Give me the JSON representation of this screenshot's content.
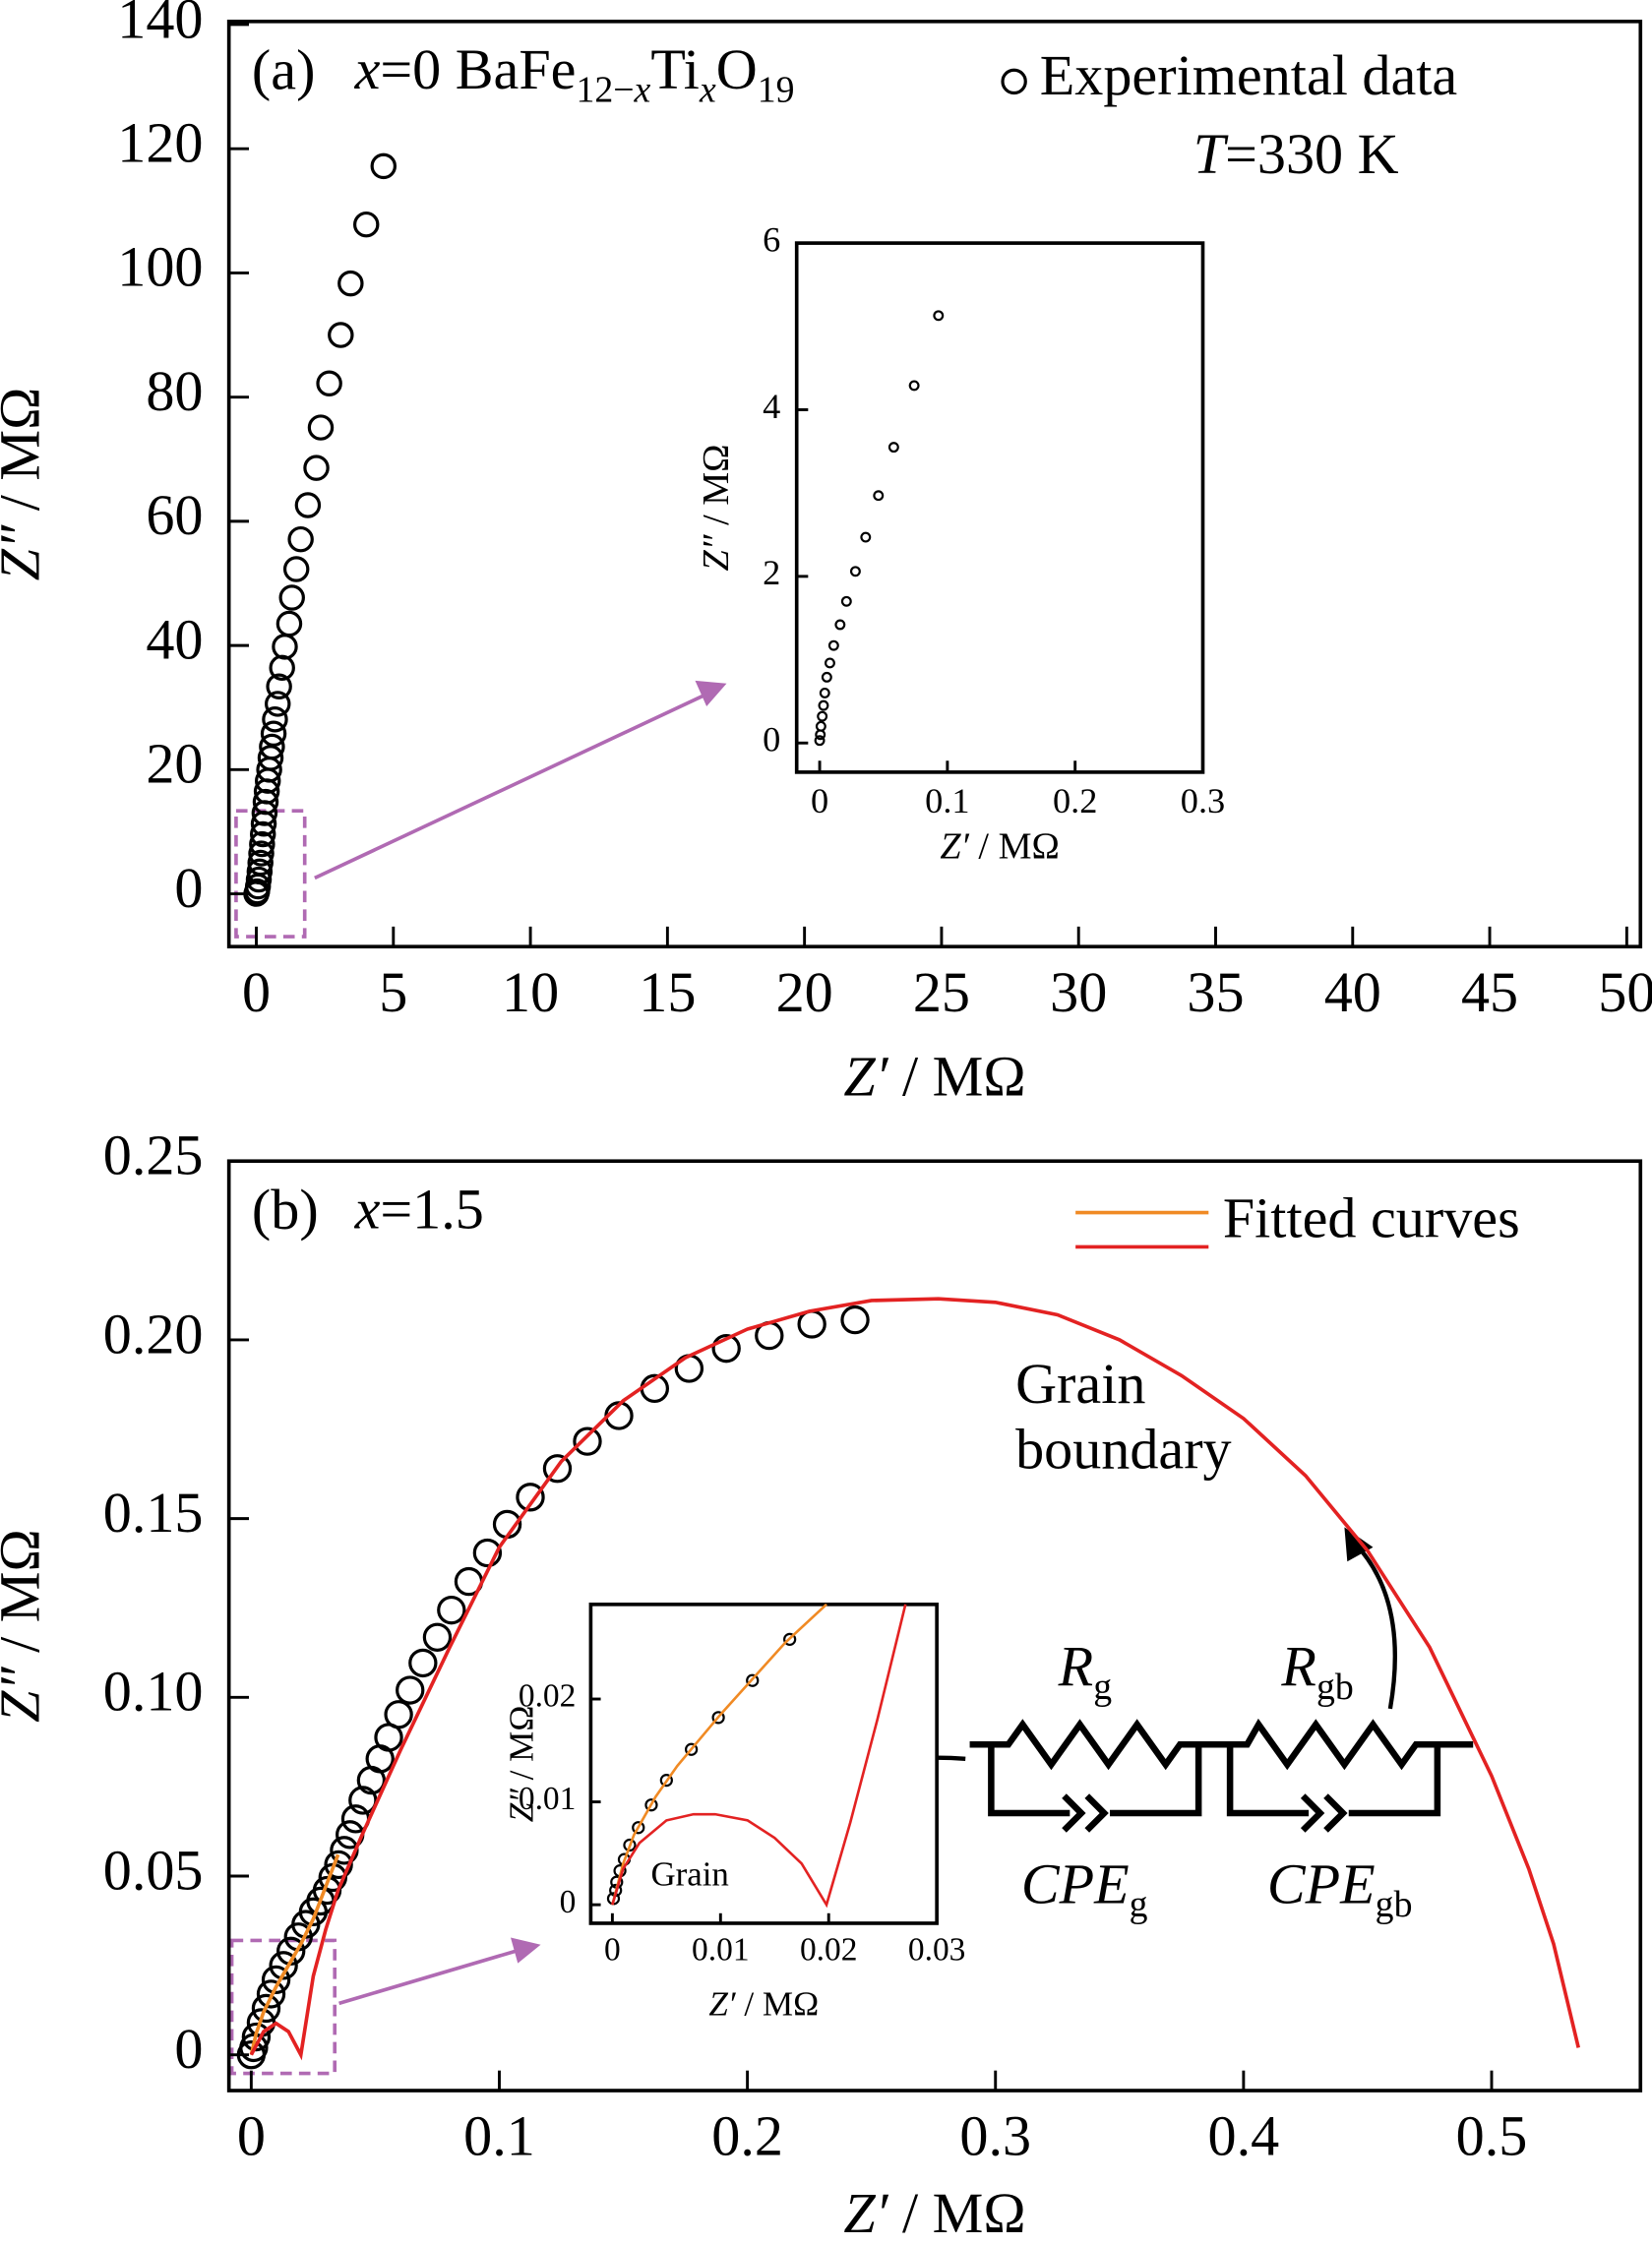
{
  "chart_data": [
    {
      "type": "scatter",
      "panel": "(a)",
      "title_parts": [
        {
          "t": "x",
          "i": true
        },
        {
          "t": "=0 BaFe"
        },
        {
          "t": "12−",
          "sub": true
        },
        {
          "t": "x",
          "sub": true,
          "i": true
        },
        {
          "t": "Ti"
        },
        {
          "t": "x",
          "sub": true,
          "i": true
        },
        {
          "t": "O"
        },
        {
          "t": "19",
          "sub": true
        }
      ],
      "xlabel": [
        {
          "t": "Z′",
          "i": true
        },
        {
          "t": " / MΩ"
        }
      ],
      "ylabel": [
        {
          "t": "Z″",
          "i": true
        },
        {
          "t": " / MΩ"
        }
      ],
      "xlim": [
        -1,
        50.5
      ],
      "ylim": [
        -8.5,
        140.5
      ],
      "xticks": [
        0,
        5,
        10,
        15,
        20,
        25,
        30,
        35,
        40,
        45,
        50
      ],
      "yticks": [
        0,
        20,
        40,
        60,
        80,
        100,
        120,
        140
      ],
      "legend": "upper right",
      "annotations": [
        [
          {
            "t": "T",
            "i": true
          },
          {
            "t": "=330 K"
          }
        ]
      ],
      "series": [
        {
          "name": "Experimental data",
          "kind": "points",
          "color": "#000000",
          "x": [
            4.64,
            4.01,
            3.44,
            3.08,
            2.66,
            2.35,
            2.19,
            1.88,
            1.62,
            1.46,
            1.3,
            1.2,
            1.04,
            0.94,
            0.83,
            0.78,
            0.68,
            0.63,
            0.57,
            0.52,
            0.47,
            0.42,
            0.38,
            0.34,
            0.3,
            0.27,
            0.24,
            0.21,
            0.18,
            0.15,
            0.12,
            0.09,
            0.06,
            0.03,
            0
          ],
          "values": [
            117.2,
            107.8,
            98.3,
            90.0,
            82.2,
            75.1,
            68.6,
            62.6,
            57.1,
            52.3,
            47.7,
            43.5,
            39.8,
            36.4,
            33.4,
            30.6,
            28.1,
            25.8,
            23.7,
            21.9,
            20.0,
            18.2,
            16.5,
            14.8,
            13.0,
            11.3,
            9.6,
            8.0,
            6.5,
            5.0,
            3.6,
            2.3,
            1.2,
            0.4,
            0
          ]
        }
      ]
    },
    {
      "type": "scatter",
      "xlabel": [
        {
          "t": "Z′",
          "i": true
        },
        {
          "t": " / MΩ"
        }
      ],
      "ylabel": [
        {
          "t": "Z″",
          "i": true
        },
        {
          "t": " / MΩ"
        }
      ],
      "xlim": [
        -0.018,
        0.3
      ],
      "ylim": [
        -0.35,
        6
      ],
      "xticks": [
        0,
        0.1,
        0.2,
        0.3
      ],
      "yticks": [
        0,
        2,
        4,
        6
      ],
      "series": [
        {
          "kind": "points",
          "color": "#000000",
          "x": [
            0.093,
            0.074,
            0.058,
            0.046,
            0.036,
            0.028,
            0.021,
            0.016,
            0.011,
            0.008,
            0.0056,
            0.004,
            0.003,
            0.002,
            0.001,
            0.0005,
            0
          ],
          "values": [
            5.13,
            4.29,
            3.55,
            2.97,
            2.47,
            2.06,
            1.7,
            1.42,
            1.17,
            0.96,
            0.79,
            0.6,
            0.45,
            0.32,
            0.2,
            0.1,
            0.03
          ]
        }
      ]
    },
    {
      "type": "scatter",
      "panel": "(b)",
      "title_parts": [
        {
          "t": "x",
          "i": true
        },
        {
          "t": "=1.5"
        }
      ],
      "xlabel": [
        {
          "t": "Z′",
          "i": true
        },
        {
          "t": " / MΩ"
        }
      ],
      "ylabel": [
        {
          "t": "Z″",
          "i": true
        },
        {
          "t": " / MΩ"
        }
      ],
      "xlim": [
        -0.009,
        0.56
      ],
      "ylim": [
        -0.01,
        0.25
      ],
      "xticks": [
        0,
        0.1,
        0.2,
        0.3,
        0.4,
        0.5
      ],
      "yticks": [
        0,
        0.05,
        {
          "value": 0.1,
          "label": "0.10"
        },
        0.15,
        {
          "value": 0.2,
          "label": "0.20"
        },
        0.25
      ],
      "legend": "upper right",
      "legend_label": "Fitted curves",
      "annotations": [
        [
          {
            "t": "Grain"
          }
        ],
        [
          {
            "t": "boundary"
          }
        ],
        [
          {
            "t": "R",
            "i": true
          },
          {
            "t": "g",
            "sub": true
          }
        ],
        [
          {
            "t": "R",
            "i": true
          },
          {
            "t": "gb",
            "sub": true
          }
        ],
        [
          {
            "t": "CPE",
            "i": true
          },
          {
            "t": "g",
            "sub": true
          }
        ],
        [
          {
            "t": "CPE",
            "i": true
          },
          {
            "t": "gb",
            "sub": true
          }
        ]
      ],
      "series": [
        {
          "kind": "points",
          "color": "#000000",
          "x": [
            0.2434,
            0.226,
            0.2088,
            0.1915,
            0.1765,
            0.1626,
            0.1482,
            0.1355,
            0.1234,
            0.1125,
            0.1032,
            0.0952,
            0.0877,
            0.0807,
            0.075,
            0.0692,
            0.064,
            0.0594,
            0.0554,
            0.0519,
            0.0484,
            0.045,
            0.0421,
            0.0398,
            0.0375,
            0.0352,
            0.0329,
            0.0306,
            0.028,
            0.025,
            0.022,
            0.019,
            0.016,
            0.013,
            0.01,
            0.008,
            0.006,
            0.004,
            0.002,
            0.001,
            0
          ],
          "values": [
            0.2056,
            0.2044,
            0.2012,
            0.1976,
            0.192,
            0.1864,
            0.1788,
            0.1716,
            0.164,
            0.156,
            0.1484,
            0.1404,
            0.1324,
            0.1244,
            0.1168,
            0.1096,
            0.102,
            0.0952,
            0.0888,
            0.0828,
            0.0768,
            0.0712,
            0.066,
            0.0616,
            0.0572,
            0.0532,
            0.0496,
            0.046,
            0.043,
            0.04,
            0.0365,
            0.033,
            0.029,
            0.025,
            0.021,
            0.017,
            0.013,
            0.009,
            0.005,
            0.002,
            0
          ]
        },
        {
          "kind": "line",
          "color": "#f08a24",
          "x": [
            0,
            0.002,
            0.005,
            0.01,
            0.015,
            0.02,
            0.025,
            0.03,
            0.035
          ],
          "values": [
            0,
            0.006,
            0.012,
            0.019,
            0.025,
            0.031,
            0.038,
            0.047,
            0.056
          ]
        },
        {
          "kind": "line",
          "color": "#e32222",
          "x": [
            0,
            0.005,
            0.01,
            0.015,
            0.02,
            0.025,
            0.03,
            0.035,
            0.045,
            0.06,
            0.08,
            0.1,
            0.125,
            0.15,
            0.175,
            0.2,
            0.225,
            0.25,
            0.277,
            0.3,
            0.325,
            0.35,
            0.375,
            0.4,
            0.425,
            0.45,
            0.475,
            0.5,
            0.515,
            0.525,
            0.535
          ],
          "values": [
            0,
            0.0065,
            0.0088,
            0.0065,
            0,
            0.022,
            0.035,
            0.046,
            0.062,
            0.085,
            0.114,
            0.142,
            0.166,
            0.183,
            0.195,
            0.203,
            0.208,
            0.211,
            0.2115,
            0.2105,
            0.207,
            0.2,
            0.19,
            0.178,
            0.162,
            0.141,
            0.114,
            0.078,
            0.052,
            0.031,
            0.002
          ]
        }
      ]
    },
    {
      "type": "scatter",
      "xlabel": [
        {
          "t": "Z′",
          "i": true
        },
        {
          "t": " / MΩ"
        }
      ],
      "ylabel": [
        {
          "t": "Z″",
          "i": true
        },
        {
          "t": " / MΩ"
        }
      ],
      "xlim": [
        -0.002,
        0.03
      ],
      "ylim": [
        -0.0018,
        0.0292
      ],
      "xticks": [
        0,
        0.01,
        0.02,
        0.03
      ],
      "yticks": [
        0,
        0.01,
        0.02
      ],
      "annotations": [
        [
          {
            "t": "Grain"
          }
        ]
      ],
      "series": [
        {
          "kind": "points",
          "color": "#000000",
          "x": [
            0.0164,
            0.01295,
            0.0098,
            0.0073,
            0.005,
            0.0036,
            0.0024,
            0.0016,
            0.0011,
            0.0007,
            0.0004,
            0.0003,
            0.0001
          ],
          "values": [
            0.0258,
            0.0218,
            0.0182,
            0.0151,
            0.0121,
            0.0097,
            0.0075,
            0.0058,
            0.0044,
            0.0033,
            0.0022,
            0.0014,
            0.0006
          ]
        },
        {
          "kind": "line",
          "color": "#f08a24",
          "x": [
            0,
            0.001,
            0.002,
            0.004,
            0.006,
            0.008,
            0.01,
            0.013,
            0.016,
            0.0198
          ],
          "values": [
            0,
            0.004,
            0.0068,
            0.0105,
            0.0135,
            0.016,
            0.0185,
            0.022,
            0.0255,
            0.0292
          ]
        },
        {
          "kind": "line",
          "color": "#e32222",
          "x": [
            0,
            0.001,
            0.0025,
            0.005,
            0.0075,
            0.0095,
            0.0125,
            0.015,
            0.0175,
            0.0198,
            0.022,
            0.0245,
            0.0271
          ],
          "values": [
            0,
            0.0035,
            0.006,
            0.0082,
            0.0088,
            0.0088,
            0.0082,
            0.0065,
            0.004,
            0,
            0.008,
            0.018,
            0.0292
          ]
        }
      ]
    }
  ]
}
